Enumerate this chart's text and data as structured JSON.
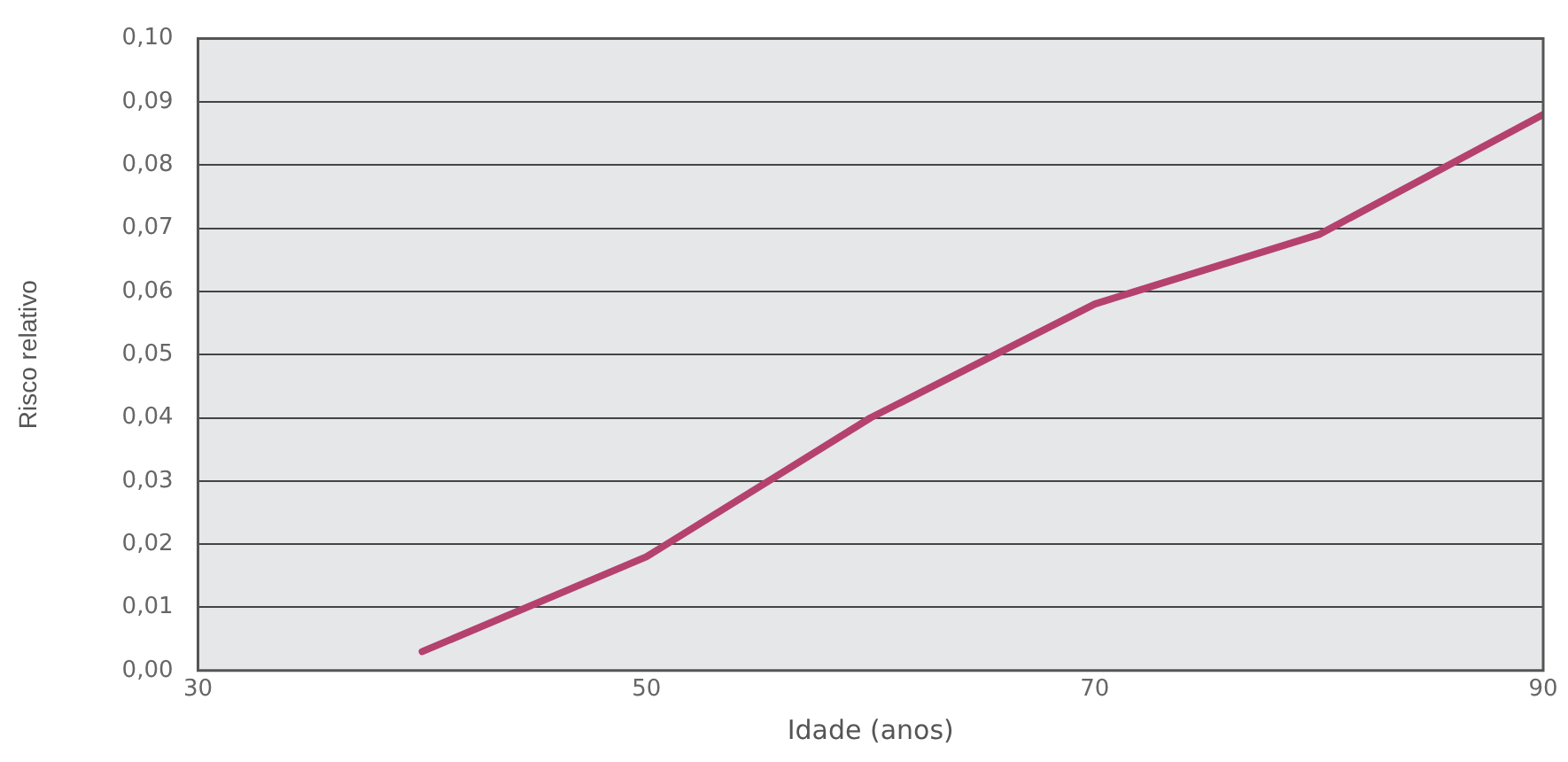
{
  "chart_data": {
    "type": "line",
    "xlabel": "Idade (anos)",
    "ylabel": "Risco relativo",
    "x": [
      40,
      50,
      60,
      70,
      80,
      90
    ],
    "series": [
      {
        "color": "#b5416f",
        "values": [
          0.003,
          0.018,
          0.04,
          0.058,
          0.069,
          0.088
        ]
      }
    ],
    "xlim": [
      30,
      90
    ],
    "xticks": [
      30,
      50,
      70,
      90
    ],
    "ylim": [
      0,
      0.1
    ],
    "yticks": [
      {
        "value": 0,
        "label": "0,00"
      },
      {
        "value": 0.01,
        "label": "0,01"
      },
      {
        "value": 0.02,
        "label": "0,02"
      },
      {
        "value": 0.03,
        "label": "0,03"
      },
      {
        "value": 0.04,
        "label": "0,04"
      },
      {
        "value": 0.05,
        "label": "0,05"
      },
      {
        "value": 0.06,
        "label": "0,06"
      },
      {
        "value": 0.07,
        "label": "0,07"
      },
      {
        "value": 0.08,
        "label": "0,08"
      },
      {
        "value": 0.09,
        "label": "0,09"
      },
      {
        "value": 0.1,
        "label": "0,10"
      }
    ],
    "grid": "y",
    "legend": false,
    "marker": "none",
    "line_style": "solid"
  }
}
